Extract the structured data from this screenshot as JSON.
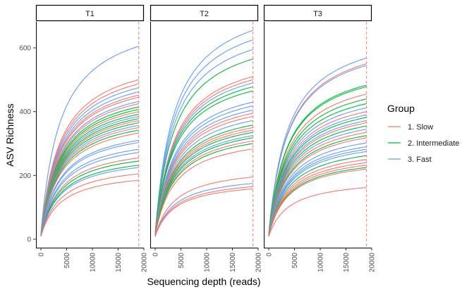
{
  "chart_data": {
    "type": "line",
    "xlabel": "Sequencing depth (reads)",
    "ylabel": "ASV Richness",
    "xlim": [
      0,
      20000
    ],
    "ylim": [
      0,
      680
    ],
    "x_ticks": [
      "0",
      "5000",
      "10000",
      "15000",
      "20000"
    ],
    "y_ticks": [
      "0",
      "200",
      "400",
      "600"
    ],
    "reference_line": {
      "x": 19000,
      "style": "dashed",
      "color": "#F8766D"
    },
    "legend": {
      "title": "Group",
      "position": "right",
      "entries": [
        {
          "label": "1. Slow",
          "color": "#F8766D"
        },
        {
          "label": "2. Intermediate",
          "color": "#00BA38"
        },
        {
          "label": "3. Fast",
          "color": "#619CFF"
        }
      ]
    },
    "panels": [
      {
        "strip": "T1",
        "max_depth": 19000,
        "curves": [
          {
            "group": "3. Fast",
            "end": 605
          },
          {
            "group": "1. Slow",
            "end": 500
          },
          {
            "group": "1. Slow",
            "end": 487
          },
          {
            "group": "3. Fast",
            "end": 475
          },
          {
            "group": "3. Fast",
            "end": 462
          },
          {
            "group": "1. Slow",
            "end": 452
          },
          {
            "group": "1. Slow",
            "end": 445
          },
          {
            "group": "3. Fast",
            "end": 432
          },
          {
            "group": "1. Slow",
            "end": 425
          },
          {
            "group": "2. Intermediate",
            "end": 415
          },
          {
            "group": "2. Intermediate",
            "end": 407
          },
          {
            "group": "1. Slow",
            "end": 400
          },
          {
            "group": "2. Intermediate",
            "end": 392
          },
          {
            "group": "3. Fast",
            "end": 385
          },
          {
            "group": "2. Intermediate",
            "end": 378
          },
          {
            "group": "1. Slow",
            "end": 372
          },
          {
            "group": "2. Intermediate",
            "end": 365
          },
          {
            "group": "3. Fast",
            "end": 357
          },
          {
            "group": "1. Slow",
            "end": 350
          },
          {
            "group": "2. Intermediate",
            "end": 342
          },
          {
            "group": "1. Slow",
            "end": 333
          },
          {
            "group": "3. Fast",
            "end": 310
          },
          {
            "group": "3. Fast",
            "end": 303
          },
          {
            "group": "3. Fast",
            "end": 282
          },
          {
            "group": "3. Fast",
            "end": 272
          },
          {
            "group": "1. Slow",
            "end": 255
          },
          {
            "group": "2. Intermediate",
            "end": 245
          },
          {
            "group": "2. Intermediate",
            "end": 232
          },
          {
            "group": "3. Fast",
            "end": 225
          },
          {
            "group": "1. Slow",
            "end": 205
          },
          {
            "group": "1. Slow",
            "end": 185
          }
        ]
      },
      {
        "strip": "T2",
        "max_depth": 19000,
        "curves": [
          {
            "group": "3. Fast",
            "end": 655
          },
          {
            "group": "3. Fast",
            "end": 625
          },
          {
            "group": "3. Fast",
            "end": 595
          },
          {
            "group": "2. Intermediate",
            "end": 565
          },
          {
            "group": "1. Slow",
            "end": 510
          },
          {
            "group": "1. Slow",
            "end": 500
          },
          {
            "group": "3. Fast",
            "end": 490
          },
          {
            "group": "2. Intermediate",
            "end": 478
          },
          {
            "group": "2. Intermediate",
            "end": 465
          },
          {
            "group": "3. Fast",
            "end": 430
          },
          {
            "group": "3. Fast",
            "end": 418
          },
          {
            "group": "3. Fast",
            "end": 405
          },
          {
            "group": "1. Slow",
            "end": 395
          },
          {
            "group": "1. Slow",
            "end": 385
          },
          {
            "group": "3. Fast",
            "end": 372
          },
          {
            "group": "2. Intermediate",
            "end": 358
          },
          {
            "group": "1. Slow",
            "end": 350
          },
          {
            "group": "1. Slow",
            "end": 342
          },
          {
            "group": "2. Intermediate",
            "end": 335
          },
          {
            "group": "3. Fast",
            "end": 325
          },
          {
            "group": "2. Intermediate",
            "end": 318
          },
          {
            "group": "1. Slow",
            "end": 308
          },
          {
            "group": "2. Intermediate",
            "end": 300
          },
          {
            "group": "1. Slow",
            "end": 283
          },
          {
            "group": "1. Slow",
            "end": 195
          },
          {
            "group": "3. Fast",
            "end": 175
          },
          {
            "group": "1. Slow",
            "end": 165
          },
          {
            "group": "1. Slow",
            "end": 158
          }
        ]
      },
      {
        "strip": "T3",
        "max_depth": 19000,
        "curves": [
          {
            "group": "3. Fast",
            "end": 568
          },
          {
            "group": "1. Slow",
            "end": 550
          },
          {
            "group": "3. Fast",
            "end": 545
          },
          {
            "group": "2. Intermediate",
            "end": 483
          },
          {
            "group": "2. Intermediate",
            "end": 478
          },
          {
            "group": "1. Slow",
            "end": 455
          },
          {
            "group": "2. Intermediate",
            "end": 440
          },
          {
            "group": "2. Intermediate",
            "end": 425
          },
          {
            "group": "3. Fast",
            "end": 412
          },
          {
            "group": "1. Slow",
            "end": 400
          },
          {
            "group": "3. Fast",
            "end": 390
          },
          {
            "group": "2. Intermediate",
            "end": 382
          },
          {
            "group": "3. Fast",
            "end": 372
          },
          {
            "group": "1. Slow",
            "end": 365
          },
          {
            "group": "2. Intermediate",
            "end": 355
          },
          {
            "group": "3. Fast",
            "end": 345
          },
          {
            "group": "1. Slow",
            "end": 335
          },
          {
            "group": "2. Intermediate",
            "end": 325
          },
          {
            "group": "1. Slow",
            "end": 318
          },
          {
            "group": "3. Fast",
            "end": 302
          },
          {
            "group": "3. Fast",
            "end": 290
          },
          {
            "group": "3. Fast",
            "end": 282
          },
          {
            "group": "3. Fast",
            "end": 275
          },
          {
            "group": "2. Intermediate",
            "end": 262
          },
          {
            "group": "1. Slow",
            "end": 250
          },
          {
            "group": "1. Slow",
            "end": 240
          },
          {
            "group": "1. Slow",
            "end": 232
          },
          {
            "group": "2. Intermediate",
            "end": 225
          },
          {
            "group": "1. Slow",
            "end": 220
          },
          {
            "group": "1. Slow",
            "end": 162
          }
        ]
      }
    ]
  }
}
